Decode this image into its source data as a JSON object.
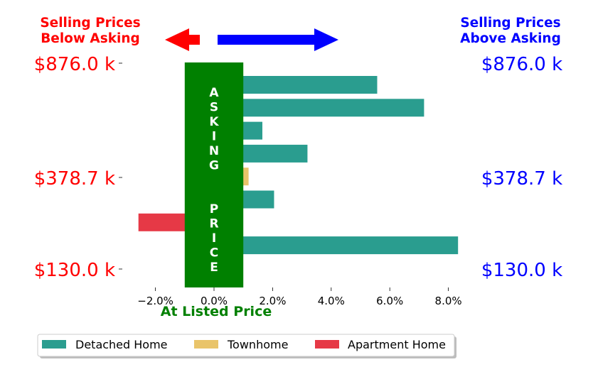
{
  "chart_data": {
    "type": "bar",
    "orientation": "horizontal",
    "header": {
      "left_label_line1": "Selling Prices",
      "left_label_line2": "Below Asking",
      "right_label_line1": "Selling Prices",
      "right_label_line2": "Above Asking"
    },
    "price_ticks": [
      "$876.0 k",
      "$378.7 k",
      "$130.0 k"
    ],
    "asking_band_text": "ASKING  PRICE",
    "xlabel": "At Listed Price",
    "xlim": [
      -0.028,
      0.084
    ],
    "xticks": [
      -0.02,
      0.0,
      0.02,
      0.04,
      0.06,
      0.08
    ],
    "xtick_labels": [
      "−2.0%",
      "0.0%",
      "2.0%",
      "4.0%",
      "6.0%",
      "8.0%"
    ],
    "asking_band_range": [
      -0.01,
      0.01
    ],
    "series": [
      {
        "name": "Detached Home",
        "color": "#2a9d8f"
      },
      {
        "name": "Townhome",
        "color": "#e9c46a"
      },
      {
        "name": "Apartment Home",
        "color": "#e63946"
      }
    ],
    "bars": [
      {
        "series": 0,
        "value": 0.0557
      },
      {
        "series": 0,
        "value": 0.0717
      },
      {
        "series": 0,
        "value": 0.0165
      },
      {
        "series": 0,
        "value": 0.0319
      },
      {
        "series": 1,
        "value": 0.0118
      },
      {
        "series": 0,
        "value": 0.0205
      },
      {
        "series": 2,
        "value": -0.0258
      },
      {
        "series": 0,
        "value": 0.0833
      }
    ],
    "colors": {
      "below": "#ff0000",
      "above": "#0000ff",
      "asking": "#008000",
      "asking_text": "#ffffff"
    }
  }
}
